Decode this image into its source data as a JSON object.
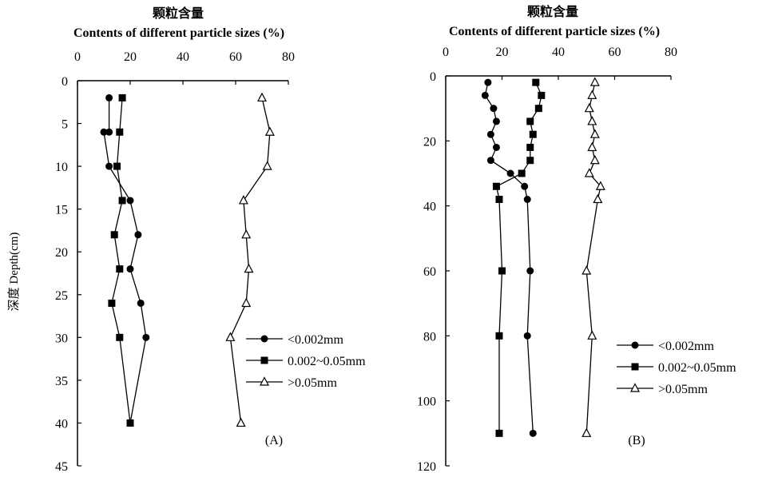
{
  "shared": {
    "title_cn": "颗粒含量",
    "title_en": "Contents of different particle sizes (%)",
    "ylabel": "深度 Depth(cm)"
  },
  "chart_data": [
    {
      "type": "line",
      "panel_label": "(A)",
      "x_axis_position": "top",
      "y_axis_inverted": true,
      "xlim": [
        0,
        80
      ],
      "ylim": [
        0,
        45
      ],
      "xticks": [
        "0",
        "20",
        "40",
        "60",
        "80"
      ],
      "yticks": [
        "0",
        "5",
        "10",
        "15",
        "20",
        "25",
        "30",
        "35",
        "40",
        "45"
      ],
      "legend_position": "right",
      "series": [
        {
          "name": "<0.002mm",
          "marker": "circle",
          "points": [
            [
              12,
              2
            ],
            [
              12,
              6
            ],
            [
              10,
              6
            ],
            [
              12,
              10
            ],
            [
              20,
              14
            ],
            [
              23,
              18
            ],
            [
              20,
              22
            ],
            [
              24,
              26
            ],
            [
              26,
              30
            ],
            [
              20,
              40
            ]
          ]
        },
        {
          "name": "0.002~0.05mm",
          "marker": "square",
          "points": [
            [
              17,
              2
            ],
            [
              16,
              6
            ],
            [
              15,
              10
            ],
            [
              17,
              14
            ],
            [
              14,
              18
            ],
            [
              16,
              22
            ],
            [
              13,
              26
            ],
            [
              16,
              30
            ],
            [
              20,
              40
            ]
          ]
        },
        {
          "name": ">0.05mm",
          "marker": "triangle",
          "points": [
            [
              70,
              2
            ],
            [
              73,
              6
            ],
            [
              72,
              10
            ],
            [
              63,
              14
            ],
            [
              64,
              18
            ],
            [
              65,
              22
            ],
            [
              64,
              26
            ],
            [
              58,
              30
            ],
            [
              62,
              40
            ]
          ]
        }
      ]
    },
    {
      "type": "line",
      "panel_label": "(B)",
      "x_axis_position": "top",
      "y_axis_inverted": true,
      "xlim": [
        0,
        80
      ],
      "ylim": [
        0,
        120
      ],
      "xticks": [
        "0",
        "20",
        "40",
        "60",
        "80"
      ],
      "yticks": [
        "0",
        "20",
        "40",
        "60",
        "80",
        "100",
        "120"
      ],
      "legend_position": "right",
      "series": [
        {
          "name": "<0.002mm",
          "marker": "circle",
          "points": [
            [
              15,
              2
            ],
            [
              14,
              6
            ],
            [
              17,
              10
            ],
            [
              18,
              14
            ],
            [
              16,
              18
            ],
            [
              18,
              22
            ],
            [
              16,
              26
            ],
            [
              23,
              30
            ],
            [
              28,
              34
            ],
            [
              29,
              38
            ],
            [
              30,
              60
            ],
            [
              29,
              80
            ],
            [
              31,
              110
            ]
          ]
        },
        {
          "name": "0.002~0.05mm",
          "marker": "square",
          "points": [
            [
              32,
              2
            ],
            [
              34,
              6
            ],
            [
              33,
              10
            ],
            [
              30,
              14
            ],
            [
              31,
              18
            ],
            [
              30,
              22
            ],
            [
              30,
              26
            ],
            [
              27,
              30
            ],
            [
              18,
              34
            ],
            [
              19,
              38
            ],
            [
              20,
              60
            ],
            [
              19,
              80
            ],
            [
              19,
              110
            ]
          ]
        },
        {
          "name": ">0.05mm",
          "marker": "triangle",
          "points": [
            [
              53,
              2
            ],
            [
              52,
              6
            ],
            [
              51,
              10
            ],
            [
              52,
              14
            ],
            [
              53,
              18
            ],
            [
              52,
              22
            ],
            [
              53,
              26
            ],
            [
              51,
              30
            ],
            [
              55,
              34
            ],
            [
              54,
              38
            ],
            [
              50,
              60
            ],
            [
              52,
              80
            ],
            [
              50,
              110
            ]
          ]
        }
      ]
    }
  ]
}
